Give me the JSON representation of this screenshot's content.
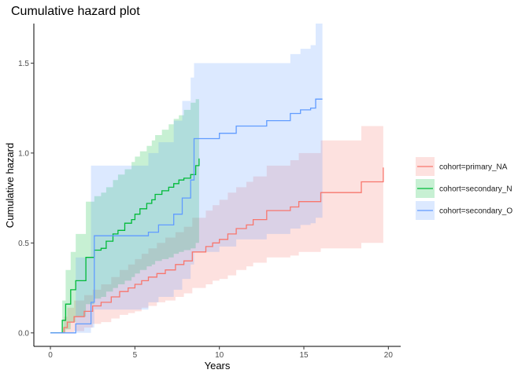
{
  "chart_data": {
    "type": "line",
    "subtype": "step-with-confidence-band",
    "title": "Cumulative hazard plot",
    "xlabel": "Years",
    "ylabel": "Cumulative hazard",
    "xlim": [
      -0.98,
      20.73
    ],
    "ylim": [
      -0.075,
      1.72
    ],
    "x_ticks": [
      0,
      5,
      10,
      15,
      20
    ],
    "x_tick_labels": [
      "0",
      "5",
      "10",
      "15",
      "20"
    ],
    "y_ticks": [
      0.0,
      0.5,
      1.0,
      1.5
    ],
    "y_tick_labels": [
      "0.0",
      "0.5",
      "1.0",
      "1.5"
    ],
    "grid": false,
    "legend_position": "right",
    "series": [
      {
        "name": "cohort=primary_NA",
        "color": "#F8766D",
        "x": [
          0,
          0.8,
          1.0,
          1.4,
          2.0,
          2.5,
          3.0,
          3.6,
          4.1,
          4.6,
          5.0,
          5.4,
          5.8,
          6.3,
          6.8,
          7.4,
          7.9,
          8.4,
          9.2,
          9.6,
          10.0,
          10.5,
          11.0,
          11.6,
          12.0,
          12.8,
          14.2,
          14.7,
          16.0,
          18.4,
          19.7
        ],
        "y": [
          0,
          0.03,
          0.06,
          0.09,
          0.12,
          0.15,
          0.17,
          0.2,
          0.23,
          0.25,
          0.27,
          0.29,
          0.31,
          0.33,
          0.35,
          0.38,
          0.4,
          0.45,
          0.48,
          0.5,
          0.52,
          0.55,
          0.58,
          0.6,
          0.63,
          0.68,
          0.7,
          0.73,
          0.78,
          0.84,
          0.92
        ],
        "lower": [
          0,
          0,
          0,
          0.01,
          0.03,
          0.05,
          0.06,
          0.08,
          0.1,
          0.11,
          0.12,
          0.14,
          0.15,
          0.17,
          0.18,
          0.2,
          0.22,
          0.25,
          0.27,
          0.29,
          0.3,
          0.32,
          0.35,
          0.37,
          0.39,
          0.42,
          0.43,
          0.45,
          0.47,
          0.5,
          0.55
        ],
        "upper": [
          0,
          0.09,
          0.14,
          0.18,
          0.21,
          0.24,
          0.27,
          0.31,
          0.35,
          0.38,
          0.41,
          0.44,
          0.47,
          0.5,
          0.53,
          0.56,
          0.59,
          0.64,
          0.68,
          0.71,
          0.74,
          0.78,
          0.81,
          0.84,
          0.87,
          0.93,
          0.96,
          1.0,
          1.07,
          1.15,
          1.25
        ]
      },
      {
        "name": "cohort=secondary_N",
        "color": "#00BA38",
        "x": [
          0,
          0.7,
          0.9,
          1.2,
          1.5,
          2.1,
          2.6,
          3.0,
          3.3,
          3.7,
          4.0,
          4.4,
          4.8,
          5.0,
          5.3,
          5.7,
          6.0,
          6.2,
          6.6,
          7.0,
          7.3,
          7.6,
          7.9,
          8.3,
          8.6,
          8.8
        ],
        "y": [
          0,
          0.07,
          0.16,
          0.24,
          0.29,
          0.42,
          0.46,
          0.47,
          0.51,
          0.55,
          0.57,
          0.61,
          0.63,
          0.66,
          0.69,
          0.72,
          0.74,
          0.77,
          0.79,
          0.81,
          0.83,
          0.85,
          0.86,
          0.88,
          0.93,
          0.97
        ],
        "lower": [
          0,
          0,
          0.02,
          0.06,
          0.09,
          0.16,
          0.19,
          0.2,
          0.23,
          0.25,
          0.27,
          0.29,
          0.31,
          0.33,
          0.35,
          0.37,
          0.38,
          0.4,
          0.41,
          0.42,
          0.44,
          0.45,
          0.46,
          0.47,
          0.5,
          0.52
        ],
        "upper": [
          0,
          0.18,
          0.35,
          0.45,
          0.55,
          0.73,
          0.76,
          0.78,
          0.81,
          0.85,
          0.88,
          0.91,
          0.95,
          0.98,
          1.01,
          1.04,
          1.07,
          1.1,
          1.13,
          1.16,
          1.19,
          1.21,
          1.24,
          1.28,
          1.3,
          1.33
        ]
      },
      {
        "name": "cohort=secondary_O",
        "color": "#619CFF",
        "x": [
          0,
          1.5,
          2.4,
          2.6,
          5.8,
          6.4,
          7.3,
          7.8,
          8.3,
          8.5,
          10.0,
          11.0,
          12.8,
          14.2,
          14.8,
          15.4,
          15.7,
          16.1
        ],
        "y": [
          0,
          0.05,
          0.17,
          0.54,
          0.56,
          0.6,
          0.66,
          0.75,
          0.85,
          1.08,
          1.11,
          1.15,
          1.18,
          1.22,
          1.24,
          1.25,
          1.3,
          1.3
        ],
        "lower": [
          0,
          0,
          0.03,
          0.13,
          0.17,
          0.2,
          0.24,
          0.3,
          0.38,
          0.45,
          0.48,
          0.52,
          0.55,
          0.58,
          0.6,
          0.61,
          0.64,
          0.64
        ],
        "upper": [
          0,
          0.42,
          0.93,
          0.93,
          1.0,
          1.06,
          1.18,
          1.29,
          1.42,
          1.5,
          1.5,
          1.5,
          1.5,
          1.55,
          1.58,
          1.6,
          1.72,
          1.72
        ]
      }
    ]
  }
}
